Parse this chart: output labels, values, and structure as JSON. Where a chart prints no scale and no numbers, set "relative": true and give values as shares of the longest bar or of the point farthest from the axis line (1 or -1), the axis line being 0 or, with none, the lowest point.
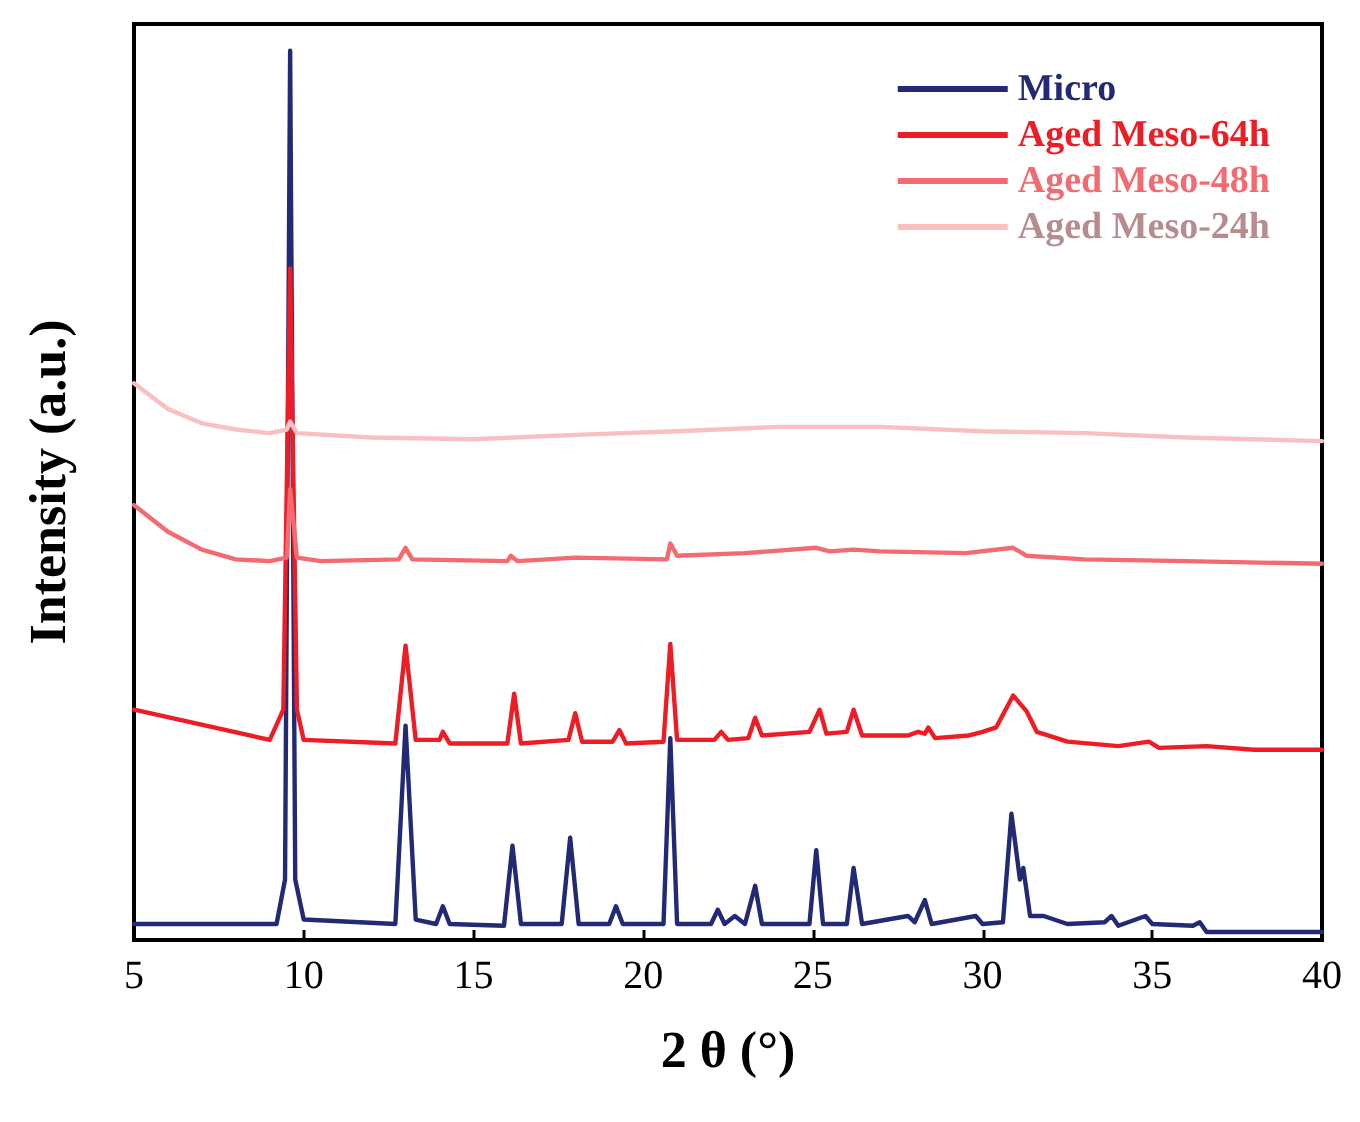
{
  "chart_data": {
    "type": "line",
    "relative": true,
    "xlabel": "2 θ (°)",
    "ylabel": "Intensity (a.u.)",
    "xlim": [
      5,
      40
    ],
    "xticks": [
      5,
      10,
      15,
      20,
      25,
      30,
      35,
      40
    ],
    "legend": "top right",
    "line_style": "solid",
    "series": [
      {
        "name": "Micro",
        "color": "#232a75",
        "x": [
          5,
          9.2,
          9.45,
          9.6,
          9.75,
          10,
          12.7,
          13.0,
          13.3,
          13.9,
          14.1,
          14.3,
          15.9,
          16.15,
          16.4,
          17.6,
          17.85,
          18.1,
          19.0,
          19.2,
          19.4,
          20.6,
          20.8,
          21.0,
          22.0,
          22.2,
          22.4,
          22.7,
          23.0,
          23.3,
          23.5,
          24.9,
          25.1,
          25.3,
          26.0,
          26.2,
          26.45,
          27.8,
          28.0,
          28.3,
          28.5,
          29.8,
          30.0,
          30.6,
          30.85,
          31.1,
          31.2,
          31.4,
          31.8,
          32.5,
          33.6,
          33.8,
          34.0,
          34.8,
          35.0,
          36.2,
          36.4,
          36.6,
          40
        ],
        "values": [
          0.018,
          0.018,
          0.068,
          1.0,
          0.068,
          0.023,
          0.018,
          0.241,
          0.023,
          0.018,
          0.038,
          0.018,
          0.016,
          0.106,
          0.018,
          0.018,
          0.115,
          0.018,
          0.018,
          0.038,
          0.018,
          0.018,
          0.227,
          0.018,
          0.018,
          0.034,
          0.018,
          0.027,
          0.018,
          0.061,
          0.018,
          0.018,
          0.101,
          0.018,
          0.018,
          0.081,
          0.018,
          0.027,
          0.02,
          0.045,
          0.018,
          0.027,
          0.018,
          0.02,
          0.142,
          0.068,
          0.081,
          0.027,
          0.027,
          0.018,
          0.02,
          0.027,
          0.016,
          0.027,
          0.018,
          0.016,
          0.02,
          0.009,
          0.009
        ]
      },
      {
        "name": "Aged Meso-64h",
        "color": "#ee1c25",
        "x": [
          5,
          9,
          9.4,
          9.6,
          9.8,
          10,
          12.7,
          13.0,
          13.3,
          14.0,
          14.1,
          14.3,
          16.0,
          16.2,
          16.4,
          17.8,
          18.0,
          18.2,
          19.1,
          19.3,
          19.5,
          20.6,
          20.8,
          21.0,
          22.1,
          22.3,
          22.5,
          23.1,
          23.3,
          23.5,
          24.9,
          25.2,
          25.4,
          26.0,
          26.2,
          26.45,
          27.8,
          28.1,
          28.3,
          28.4,
          28.6,
          29.6,
          30.0,
          30.4,
          30.9,
          31.3,
          31.6,
          32.5,
          34.0,
          34.9,
          35.2,
          36.6,
          38,
          40
        ],
        "values": [
          0.259,
          0.225,
          0.259,
          0.755,
          0.259,
          0.225,
          0.221,
          0.331,
          0.225,
          0.225,
          0.234,
          0.221,
          0.221,
          0.277,
          0.221,
          0.225,
          0.255,
          0.223,
          0.223,
          0.236,
          0.221,
          0.223,
          0.333,
          0.225,
          0.225,
          0.234,
          0.225,
          0.227,
          0.25,
          0.23,
          0.234,
          0.259,
          0.232,
          0.234,
          0.259,
          0.23,
          0.23,
          0.234,
          0.232,
          0.239,
          0.227,
          0.23,
          0.234,
          0.239,
          0.275,
          0.257,
          0.234,
          0.223,
          0.218,
          0.223,
          0.216,
          0.218,
          0.214,
          0.214
        ]
      },
      {
        "name": "Aged Meso-48h",
        "color": "#f36b70",
        "x": [
          5,
          6,
          7,
          8,
          9,
          9.5,
          9.6,
          9.8,
          10.5,
          12.8,
          13.0,
          13.2,
          16.0,
          16.1,
          16.3,
          18.0,
          20.7,
          20.8,
          21.0,
          23,
          25.1,
          25.5,
          26.2,
          27,
          29.5,
          30.9,
          31.3,
          33,
          36,
          40
        ],
        "values": [
          0.489,
          0.459,
          0.439,
          0.428,
          0.426,
          0.43,
          0.507,
          0.43,
          0.426,
          0.428,
          0.441,
          0.428,
          0.426,
          0.432,
          0.426,
          0.43,
          0.428,
          0.446,
          0.432,
          0.435,
          0.441,
          0.437,
          0.439,
          0.437,
          0.435,
          0.441,
          0.432,
          0.428,
          0.426,
          0.423
        ]
      },
      {
        "name": "Aged Meso-24h",
        "color": "#f9c0c2",
        "x": [
          5,
          6,
          7,
          8,
          9,
          9.5,
          9.6,
          9.8,
          12,
          15,
          18,
          21,
          24,
          27,
          30,
          33,
          36,
          40
        ],
        "values": [
          0.626,
          0.597,
          0.581,
          0.574,
          0.57,
          0.574,
          0.583,
          0.57,
          0.565,
          0.563,
          0.568,
          0.572,
          0.577,
          0.577,
          0.572,
          0.57,
          0.565,
          0.561
        ]
      }
    ]
  }
}
